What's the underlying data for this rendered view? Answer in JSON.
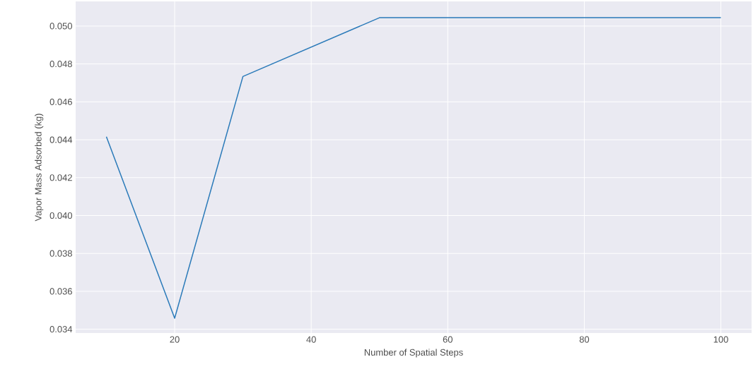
{
  "chart_data": {
    "type": "line",
    "xlabel": "Number of Spatial Steps",
    "ylabel": "Vapor Mass Adsorbed (kg)",
    "x": [
      10,
      20,
      30,
      50,
      100
    ],
    "series": [
      {
        "color": "#2a7ab9",
        "values": [
          0.04416,
          0.03458,
          0.04734,
          0.05044,
          0.05044
        ]
      }
    ],
    "xlim": [
      5.5,
      104.5
    ],
    "ylim": [
      0.0338,
      0.0513
    ],
    "xticks": [
      20,
      40,
      60,
      80,
      100
    ],
    "yticks": [
      {
        "value": 0.034,
        "label": "0.034"
      },
      {
        "value": 0.036,
        "label": "0.036"
      },
      {
        "value": 0.038,
        "label": "0.038"
      },
      {
        "value": 0.04,
        "label": "0.040"
      },
      {
        "value": 0.042,
        "label": "0.042"
      },
      {
        "value": 0.044,
        "label": "0.044"
      },
      {
        "value": 0.046,
        "label": "0.046"
      },
      {
        "value": 0.048,
        "label": "0.048"
      },
      {
        "value": 0.05,
        "label": "0.050"
      }
    ],
    "grid": true,
    "marker": "none",
    "line_style": "solid"
  }
}
